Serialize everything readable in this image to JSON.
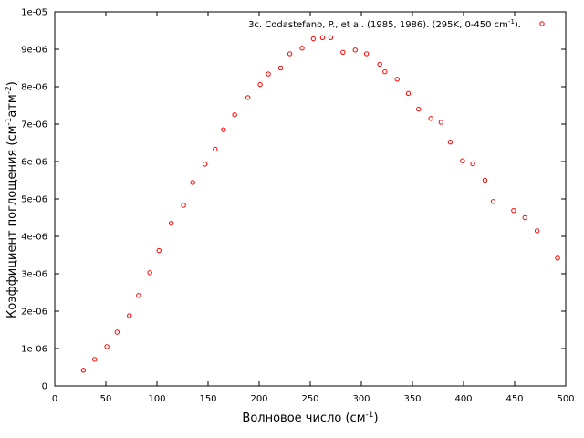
{
  "chart_data": {
    "type": "scatter",
    "xlabel": {
      "base": "Волновое число (см",
      "sup": "-1",
      "tail": ")"
    },
    "ylabel": {
      "p1": "Коэффициент поглощения (см",
      "s1": "-1",
      "p2": "атм",
      "s2": "-2",
      "p3": ")"
    },
    "xlim": [
      0,
      500
    ],
    "ylim": [
      0,
      1e-05
    ],
    "x_ticks": [
      0,
      50,
      100,
      150,
      200,
      250,
      300,
      350,
      400,
      450,
      500
    ],
    "x_tick_labels": [
      "0",
      "50",
      "100",
      "150",
      "200",
      "250",
      "300",
      "350",
      "400",
      "450",
      "500"
    ],
    "y_ticks": [
      0,
      1e-06,
      2e-06,
      3e-06,
      4e-06,
      5e-06,
      6e-06,
      7e-06,
      8e-06,
      9e-06,
      1e-05
    ],
    "y_tick_labels": [
      "0",
      "1e-06",
      "2e-06",
      "3e-06",
      "4e-06",
      "5e-06",
      "6e-06",
      "7e-06",
      "8e-06",
      "9e-06",
      "1e-05"
    ],
    "grid": false,
    "legend_position": "top-right",
    "series": [
      {
        "name": {
          "base": "3c. Codastefano, P., et al. (1985, 1986). (295K, 0-450 cm",
          "sup": "-1",
          "tail": ")."
        },
        "color": "#ff0000",
        "marker": "circle-open",
        "x": [
          28,
          39,
          51,
          61,
          73,
          82,
          93,
          102,
          114,
          126,
          135,
          147,
          157,
          165,
          176,
          189,
          201,
          209,
          221,
          230,
          242,
          253,
          262,
          270,
          282,
          294,
          305,
          318,
          323,
          335,
          346,
          356,
          368,
          378,
          387,
          399,
          409,
          421,
          429,
          449,
          460,
          472,
          492
        ],
        "y": [
          4.2e-07,
          7.1e-07,
          1.05e-06,
          1.44e-06,
          1.88e-06,
          2.42e-06,
          3.03e-06,
          3.62e-06,
          4.35e-06,
          4.83e-06,
          5.44e-06,
          5.93e-06,
          6.33e-06,
          6.85e-06,
          7.25e-06,
          7.71e-06,
          8.06e-06,
          8.34e-06,
          8.5e-06,
          8.88e-06,
          9.03e-06,
          9.28e-06,
          9.31e-06,
          9.31e-06,
          8.92e-06,
          8.98e-06,
          8.88e-06,
          8.6e-06,
          8.4e-06,
          8.2e-06,
          7.82e-06,
          7.4e-06,
          7.15e-06,
          7.05e-06,
          6.52e-06,
          6.02e-06,
          5.94e-06,
          5.5e-06,
          4.93e-06,
          4.69e-06,
          4.5e-06,
          4.15e-06,
          3.42e-06
        ]
      }
    ]
  }
}
